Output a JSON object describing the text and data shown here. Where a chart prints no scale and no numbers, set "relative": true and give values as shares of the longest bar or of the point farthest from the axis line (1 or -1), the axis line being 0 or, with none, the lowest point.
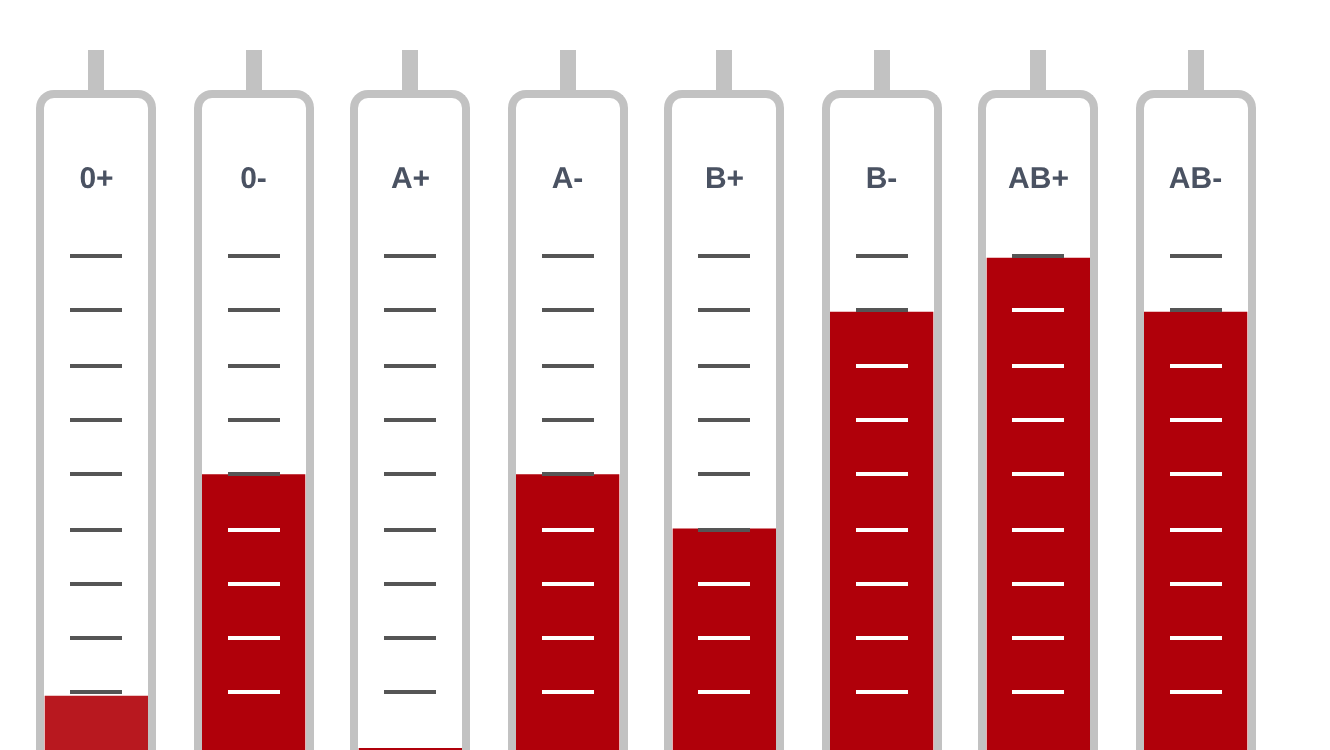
{
  "chart_data": {
    "type": "bar",
    "relative": true,
    "categories": [
      "0+",
      "0-",
      "A+",
      "A-",
      "B+",
      "B-",
      "AB+",
      "AB-"
    ],
    "values": [
      0.11,
      0.56,
      0.004,
      0.56,
      0.45,
      0.89,
      1,
      0.89
    ],
    "colors": [
      "#b8181f",
      "#b0000a",
      "#b0000a",
      "#b0000a",
      "#b0000a",
      "#b0000a",
      "#b0000a",
      "#b0000a"
    ],
    "legend": false
  }
}
